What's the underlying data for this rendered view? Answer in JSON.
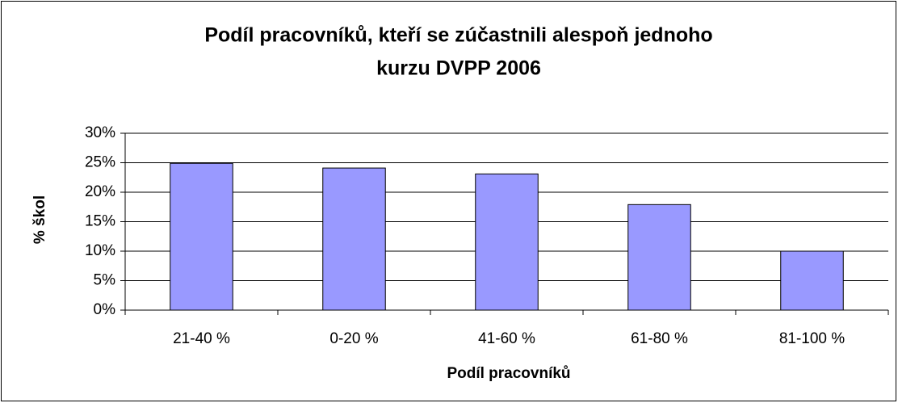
{
  "chart_data": {
    "type": "bar",
    "title": [
      "Podíl pracovníků, kteří se zúčastnili alespoň jednoho",
      "kurzu DVPP 2006"
    ],
    "x_label": "Podíl pracovníků",
    "y_label": "% škol",
    "categories": [
      "21-40 %",
      "0-20 %",
      "41-60 %",
      "61-80 %",
      "81-100 %"
    ],
    "values": [
      24.9,
      24.1,
      23.1,
      17.9,
      10
    ],
    "color": "#9999ff",
    "ylim": [
      0,
      30
    ],
    "yticks": [
      {
        "value": 0,
        "label": "0%"
      },
      {
        "value": 5,
        "label": "5%"
      },
      {
        "value": 10,
        "label": "10%"
      },
      {
        "value": 15,
        "label": "15%"
      },
      {
        "value": 20,
        "label": "20%"
      },
      {
        "value": 25,
        "label": "25%"
      },
      {
        "value": 30,
        "label": "30%"
      }
    ],
    "grid": true
  }
}
